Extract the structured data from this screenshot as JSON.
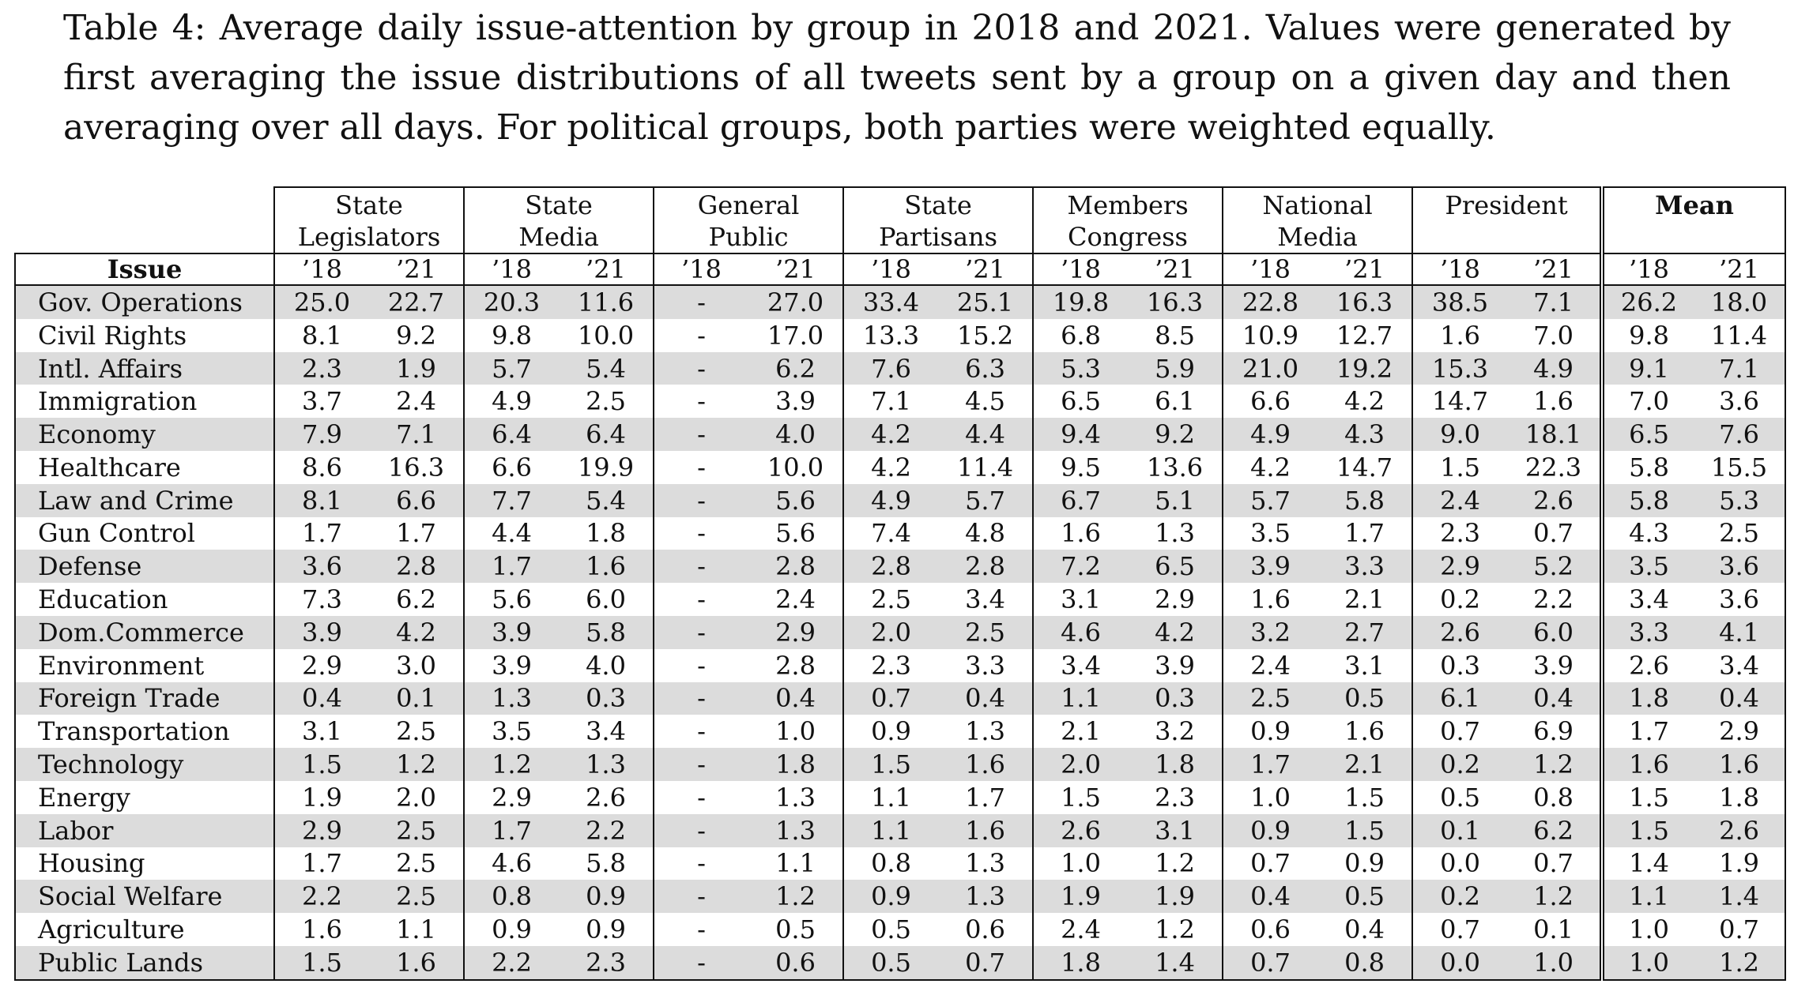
{
  "caption": "Table 4: Average daily issue-attention by group in 2018 and 2021. Values were generated by first averaging the issue distributions of all tweets sent by a group on a given day and then averaging over all days. For political groups, both parties were weighted equally.",
  "table": {
    "issue_header": "Issue",
    "groups": [
      {
        "line1": "State",
        "line2": "Legislators"
      },
      {
        "line1": "State",
        "line2": "Media"
      },
      {
        "line1": "General",
        "line2": "Public"
      },
      {
        "line1": "State",
        "line2": "Partisans"
      },
      {
        "line1": "Members",
        "line2": "Congress"
      },
      {
        "line1": "National",
        "line2": "Media"
      },
      {
        "line1": "President",
        "line2": ""
      },
      {
        "line1": "Mean",
        "line2": ""
      }
    ],
    "years": [
      "’18",
      "’21"
    ],
    "rows": [
      {
        "issue": "Gov. Operations",
        "values": [
          "25.0",
          "22.7",
          "20.3",
          "11.6",
          "-",
          "27.0",
          "33.4",
          "25.1",
          "19.8",
          "16.3",
          "22.8",
          "16.3",
          "38.5",
          "7.1",
          "26.2",
          "18.0"
        ]
      },
      {
        "issue": "Civil Rights",
        "values": [
          "8.1",
          "9.2",
          "9.8",
          "10.0",
          "-",
          "17.0",
          "13.3",
          "15.2",
          "6.8",
          "8.5",
          "10.9",
          "12.7",
          "1.6",
          "7.0",
          "9.8",
          "11.4"
        ]
      },
      {
        "issue": "Intl. Affairs",
        "values": [
          "2.3",
          "1.9",
          "5.7",
          "5.4",
          "-",
          "6.2",
          "7.6",
          "6.3",
          "5.3",
          "5.9",
          "21.0",
          "19.2",
          "15.3",
          "4.9",
          "9.1",
          "7.1"
        ]
      },
      {
        "issue": "Immigration",
        "values": [
          "3.7",
          "2.4",
          "4.9",
          "2.5",
          "-",
          "3.9",
          "7.1",
          "4.5",
          "6.5",
          "6.1",
          "6.6",
          "4.2",
          "14.7",
          "1.6",
          "7.0",
          "3.6"
        ]
      },
      {
        "issue": "Economy",
        "values": [
          "7.9",
          "7.1",
          "6.4",
          "6.4",
          "-",
          "4.0",
          "4.2",
          "4.4",
          "9.4",
          "9.2",
          "4.9",
          "4.3",
          "9.0",
          "18.1",
          "6.5",
          "7.6"
        ]
      },
      {
        "issue": "Healthcare",
        "values": [
          "8.6",
          "16.3",
          "6.6",
          "19.9",
          "-",
          "10.0",
          "4.2",
          "11.4",
          "9.5",
          "13.6",
          "4.2",
          "14.7",
          "1.5",
          "22.3",
          "5.8",
          "15.5"
        ]
      },
      {
        "issue": "Law and Crime",
        "values": [
          "8.1",
          "6.6",
          "7.7",
          "5.4",
          "-",
          "5.6",
          "4.9",
          "5.7",
          "6.7",
          "5.1",
          "5.7",
          "5.8",
          "2.4",
          "2.6",
          "5.8",
          "5.3"
        ]
      },
      {
        "issue": "Gun Control",
        "values": [
          "1.7",
          "1.7",
          "4.4",
          "1.8",
          "-",
          "5.6",
          "7.4",
          "4.8",
          "1.6",
          "1.3",
          "3.5",
          "1.7",
          "2.3",
          "0.7",
          "4.3",
          "2.5"
        ]
      },
      {
        "issue": "Defense",
        "values": [
          "3.6",
          "2.8",
          "1.7",
          "1.6",
          "-",
          "2.8",
          "2.8",
          "2.8",
          "7.2",
          "6.5",
          "3.9",
          "3.3",
          "2.9",
          "5.2",
          "3.5",
          "3.6"
        ]
      },
      {
        "issue": "Education",
        "values": [
          "7.3",
          "6.2",
          "5.6",
          "6.0",
          "-",
          "2.4",
          "2.5",
          "3.4",
          "3.1",
          "2.9",
          "1.6",
          "2.1",
          "0.2",
          "2.2",
          "3.4",
          "3.6"
        ]
      },
      {
        "issue": "Dom.Commerce",
        "values": [
          "3.9",
          "4.2",
          "3.9",
          "5.8",
          "-",
          "2.9",
          "2.0",
          "2.5",
          "4.6",
          "4.2",
          "3.2",
          "2.7",
          "2.6",
          "6.0",
          "3.3",
          "4.1"
        ]
      },
      {
        "issue": "Environment",
        "values": [
          "2.9",
          "3.0",
          "3.9",
          "4.0",
          "-",
          "2.8",
          "2.3",
          "3.3",
          "3.4",
          "3.9",
          "2.4",
          "3.1",
          "0.3",
          "3.9",
          "2.6",
          "3.4"
        ]
      },
      {
        "issue": "Foreign Trade",
        "values": [
          "0.4",
          "0.1",
          "1.3",
          "0.3",
          "-",
          "0.4",
          "0.7",
          "0.4",
          "1.1",
          "0.3",
          "2.5",
          "0.5",
          "6.1",
          "0.4",
          "1.8",
          "0.4"
        ]
      },
      {
        "issue": "Transportation",
        "values": [
          "3.1",
          "2.5",
          "3.5",
          "3.4",
          "-",
          "1.0",
          "0.9",
          "1.3",
          "2.1",
          "3.2",
          "0.9",
          "1.6",
          "0.7",
          "6.9",
          "1.7",
          "2.9"
        ]
      },
      {
        "issue": "Technology",
        "values": [
          "1.5",
          "1.2",
          "1.2",
          "1.3",
          "-",
          "1.8",
          "1.5",
          "1.6",
          "2.0",
          "1.8",
          "1.7",
          "2.1",
          "0.2",
          "1.2",
          "1.6",
          "1.6"
        ]
      },
      {
        "issue": "Energy",
        "values": [
          "1.9",
          "2.0",
          "2.9",
          "2.6",
          "-",
          "1.3",
          "1.1",
          "1.7",
          "1.5",
          "2.3",
          "1.0",
          "1.5",
          "0.5",
          "0.8",
          "1.5",
          "1.8"
        ]
      },
      {
        "issue": "Labor",
        "values": [
          "2.9",
          "2.5",
          "1.7",
          "2.2",
          "-",
          "1.3",
          "1.1",
          "1.6",
          "2.6",
          "3.1",
          "0.9",
          "1.5",
          "0.1",
          "6.2",
          "1.5",
          "2.6"
        ]
      },
      {
        "issue": "Housing",
        "values": [
          "1.7",
          "2.5",
          "4.6",
          "5.8",
          "-",
          "1.1",
          "0.8",
          "1.3",
          "1.0",
          "1.2",
          "0.7",
          "0.9",
          "0.0",
          "0.7",
          "1.4",
          "1.9"
        ]
      },
      {
        "issue": "Social Welfare",
        "values": [
          "2.2",
          "2.5",
          "0.8",
          "0.9",
          "-",
          "1.2",
          "0.9",
          "1.3",
          "1.9",
          "1.9",
          "0.4",
          "0.5",
          "0.2",
          "1.2",
          "1.1",
          "1.4"
        ]
      },
      {
        "issue": "Agriculture",
        "values": [
          "1.6",
          "1.1",
          "0.9",
          "0.9",
          "-",
          "0.5",
          "0.5",
          "0.6",
          "2.4",
          "1.2",
          "0.6",
          "0.4",
          "0.7",
          "0.1",
          "1.0",
          "0.7"
        ]
      },
      {
        "issue": "Public Lands",
        "values": [
          "1.5",
          "1.6",
          "2.2",
          "2.3",
          "-",
          "0.6",
          "0.5",
          "0.7",
          "1.8",
          "1.4",
          "0.7",
          "0.8",
          "0.0",
          "1.0",
          "1.0",
          "1.2"
        ]
      }
    ]
  }
}
